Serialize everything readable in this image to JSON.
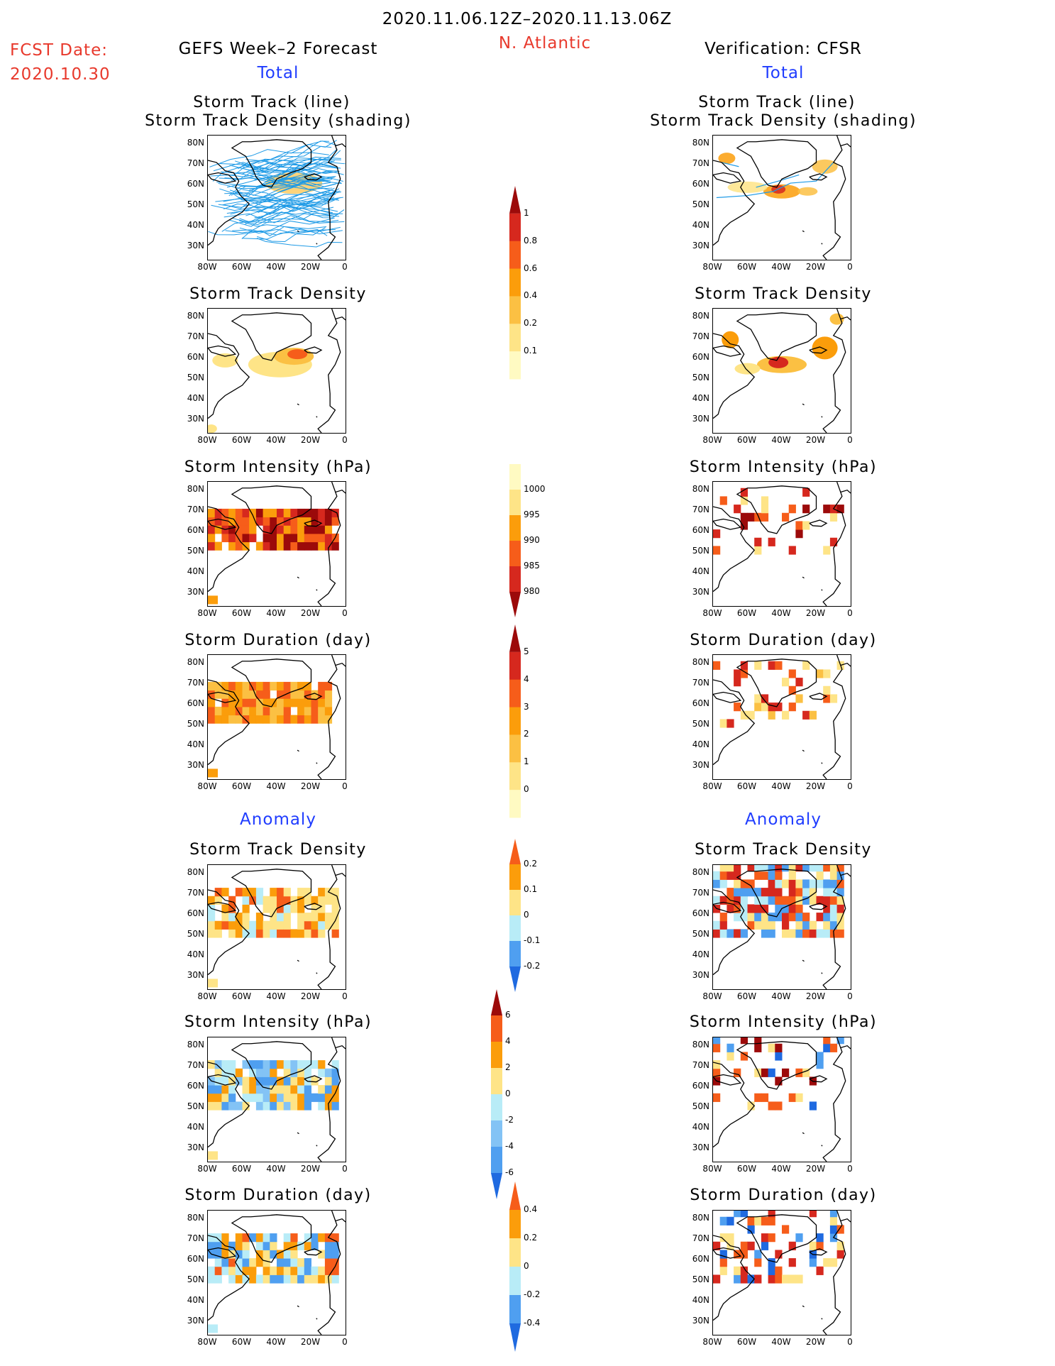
{
  "header": {
    "date_range": "2020.11.06.12Z–2020.11.13.06Z",
    "region": "N. Atlantic",
    "fcst_label": "FCST Date:",
    "fcst_date": "2020.10.30",
    "left_title": "GEFS Week–2 Forecast",
    "right_title": "Verification: CFSR"
  },
  "sections": {
    "total": "Total",
    "anomaly": "Anomaly"
  },
  "panels": {
    "track_line": "Storm Track (line)",
    "track_density_shading": "Storm Track Density (shading)",
    "track_density": "Storm Track Density",
    "intensity": "Storm Intensity (hPa)",
    "duration": "Storm Duration (day)"
  },
  "axes": {
    "lat_ticks": [
      "80N",
      "70N",
      "60N",
      "50N",
      "40N",
      "30N"
    ],
    "lon_ticks": [
      "80W",
      "60W",
      "40W",
      "20W",
      "0"
    ]
  },
  "colorbars": {
    "density_total": {
      "labels": [
        "1",
        "0.8",
        "0.6",
        "0.4",
        "0.2",
        "0.1"
      ],
      "colors": [
        "#9c0a0a",
        "#d6281e",
        "#f65d1a",
        "#fb9d0b",
        "#fbc043",
        "#fee487",
        "#fffac2"
      ]
    },
    "intensity_total": {
      "labels": [
        "1000",
        "995",
        "990",
        "985",
        "980"
      ],
      "colors": [
        "#fffac2",
        "#fee487",
        "#fb9d0b",
        "#f65d1a",
        "#d6281e",
        "#9c0a0a"
      ]
    },
    "duration_total": {
      "labels": [
        "5",
        "4",
        "3",
        "2",
        "1",
        "0"
      ],
      "colors": [
        "#9c0a0a",
        "#d6281e",
        "#f65d1a",
        "#fb9d0b",
        "#fbc043",
        "#fee487",
        "#fffac2"
      ]
    },
    "density_anom": {
      "labels": [
        "0.2",
        "0.1",
        "0",
        "-0.1",
        "-0.2"
      ],
      "colors": [
        "#f65d1a",
        "#fb9d0b",
        "#fee487",
        "#b8ecf7",
        "#4f9ff0",
        "#1f6ae0"
      ]
    },
    "intensity_anom": {
      "labels": [
        "6",
        "4",
        "2",
        "0",
        "-2",
        "-4",
        "-6"
      ],
      "colors": [
        "#9c0a0a",
        "#f65d1a",
        "#fb9d0b",
        "#fee487",
        "#b8ecf7",
        "#83c3f5",
        "#4f9ff0",
        "#1f6ae0"
      ]
    },
    "duration_anom": {
      "labels": [
        "0.4",
        "0.2",
        "0",
        "-0.2",
        "-0.4"
      ],
      "colors": [
        "#f65d1a",
        "#fb9d0b",
        "#fee487",
        "#b8ecf7",
        "#4f9ff0",
        "#1f6ae0"
      ]
    }
  }
}
